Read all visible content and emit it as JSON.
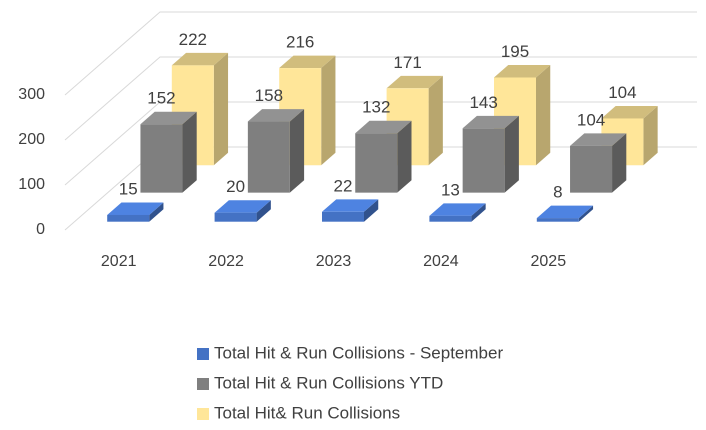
{
  "chart_data": {
    "type": "bar3d",
    "categories": [
      "2021",
      "2022",
      "2023",
      "2024",
      "2025"
    ],
    "series": [
      {
        "name": "Total Hit & Run Collisions - September",
        "color": "#4472c4",
        "values": [
          15,
          20,
          22,
          13,
          8
        ]
      },
      {
        "name": "Total Hit & Run Collisions YTD",
        "color": "#7f7f7f",
        "values": [
          152,
          158,
          132,
          143,
          104
        ]
      },
      {
        "name": "Total Hit& Run Collisions",
        "color": "#ffe699",
        "values": [
          222,
          216,
          171,
          195,
          104
        ]
      }
    ],
    "ylim": [
      0,
      300
    ],
    "yticks": [
      0,
      100,
      200,
      300
    ],
    "grid": true
  }
}
